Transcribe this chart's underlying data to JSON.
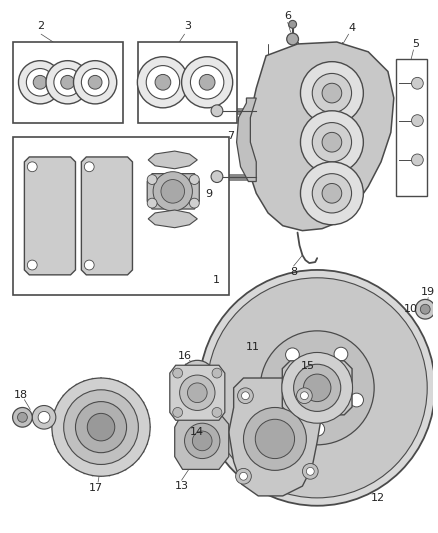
{
  "bg_color": "#ffffff",
  "line_color": "#4a4a4a",
  "gray_fill": "#d4d4d4",
  "light_gray": "#e8e8e8",
  "dark_gray": "#b0b0b0",
  "label_fontsize": 8.0
}
